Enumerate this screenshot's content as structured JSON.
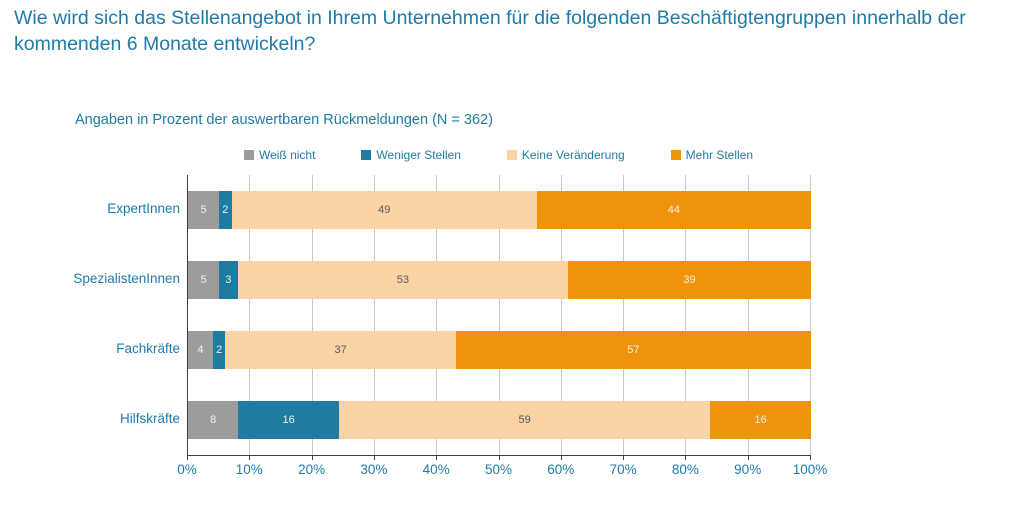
{
  "title": "Wie wird sich das Stellenangebot in Ihrem Unternehmen für die folgenden Beschäftigtengruppen innerhalb der kommenden 6 Monate entwickeln?",
  "subtitle": "Angaben in Prozent der auswertbaren Rückmeldungen (N = 362)",
  "chart_data": {
    "type": "bar",
    "orientation": "horizontal-stacked",
    "title": "Wie wird sich das Stellenangebot in Ihrem Unternehmen für die folgenden Beschäftigtengruppen innerhalb der kommenden 6 Monate entwickeln?",
    "subtitle": "Angaben in Prozent der auswertbaren Rückmeldungen (N = 362)",
    "categories": [
      "ExpertInnen",
      "SpezialistenInnen",
      "Fachkräfte",
      "Hilfskräfte"
    ],
    "series": [
      {
        "name": "Weiß nicht",
        "color": "#9C9C9C",
        "label_color": "#F2F2F2",
        "values": [
          5,
          5,
          4,
          8
        ]
      },
      {
        "name": "Weniger Stellen",
        "color": "#1F7BA2",
        "label_color": "#F2F2F2",
        "values": [
          2,
          3,
          2,
          16
        ]
      },
      {
        "name": "Keine Veränderung",
        "color": "#FBD3A6",
        "label_color": "#595959",
        "values": [
          49,
          53,
          37,
          59
        ]
      },
      {
        "name": "Mehr Stellen",
        "color": "#EF930C",
        "label_color": "#FBF2DC",
        "values": [
          44,
          39,
          57,
          16
        ]
      }
    ],
    "x_ticks": [
      "0%",
      "10%",
      "20%",
      "30%",
      "40%",
      "50%",
      "60%",
      "70%",
      "80%",
      "90%",
      "100%"
    ],
    "xlim": [
      0,
      100
    ],
    "grid": true,
    "legend_position": "top"
  },
  "colors": {
    "text_teal": "#1E7BA8",
    "axis_line": "#3F3F3F",
    "gridline": "#C8C8C8",
    "background": "#FFFFFF"
  }
}
